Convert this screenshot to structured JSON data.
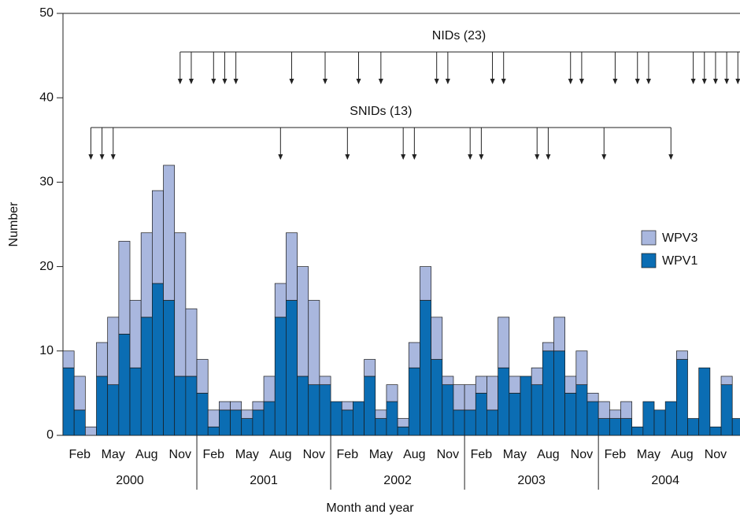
{
  "chart_data": {
    "type": "stacked_bar",
    "x_label": "Month and year",
    "y_label": "Number",
    "categories": [
      null,
      "Feb",
      null,
      null,
      "May",
      null,
      null,
      "Aug",
      null,
      null,
      "Nov",
      null,
      null,
      "Feb",
      null,
      null,
      "May",
      null,
      null,
      "Aug",
      null,
      null,
      "Nov",
      null,
      null,
      "Feb",
      null,
      null,
      "May",
      null,
      null,
      "Aug",
      null,
      null,
      "Nov",
      null,
      null,
      "Feb",
      null,
      null,
      "May",
      null,
      null,
      "Aug",
      null,
      null,
      "Nov",
      null,
      null,
      "Feb",
      null,
      null,
      "May",
      null,
      null,
      "Aug",
      null,
      null,
      "Nov",
      null,
      null
    ],
    "years": [
      "2000",
      "2001",
      "2002",
      "2003",
      "2004"
    ],
    "series": [
      {
        "name": "WPV1",
        "color": "#0b6db3",
        "values": [
          8,
          3,
          0,
          7,
          6,
          12,
          8,
          14,
          18,
          16,
          7,
          7,
          5,
          1,
          3,
          3,
          2,
          3,
          4,
          14,
          16,
          7,
          6,
          6,
          4,
          3,
          4,
          7,
          2,
          4,
          1,
          8,
          16,
          9,
          6,
          3,
          3,
          5,
          3,
          8,
          5,
          7,
          6,
          10,
          10,
          5,
          6,
          4,
          2,
          2,
          2,
          1,
          4,
          3,
          4,
          9,
          2,
          8,
          1,
          6,
          2
        ]
      },
      {
        "name": "WPV3",
        "color": "#a9b7de",
        "values": [
          2,
          4,
          1,
          4,
          8,
          11,
          8,
          10,
          11,
          16,
          17,
          8,
          4,
          2,
          1,
          1,
          1,
          1,
          3,
          4,
          8,
          13,
          10,
          1,
          0,
          1,
          0,
          2,
          1,
          2,
          1,
          3,
          4,
          5,
          1,
          3,
          3,
          2,
          4,
          6,
          2,
          0,
          2,
          1,
          4,
          2,
          4,
          1,
          2,
          1,
          2,
          0,
          0,
          0,
          0,
          1,
          0,
          0,
          0,
          1,
          0
        ]
      }
    ],
    "ylim": [
      0,
      50
    ],
    "yticks": [
      0,
      10,
      20,
      30,
      40,
      50
    ],
    "annotations": [
      {
        "text": "NIDs (23)",
        "months": [
          10,
          11,
          13,
          14,
          15,
          20,
          23,
          26,
          28,
          33,
          34,
          38,
          39,
          45,
          46,
          49,
          51,
          52,
          56,
          57,
          58,
          59,
          60
        ]
      },
      {
        "text": "SNIDs (13)",
        "months": [
          2,
          3,
          4,
          19,
          25,
          30,
          31,
          36,
          37,
          42,
          43,
          48,
          54
        ]
      }
    ]
  }
}
